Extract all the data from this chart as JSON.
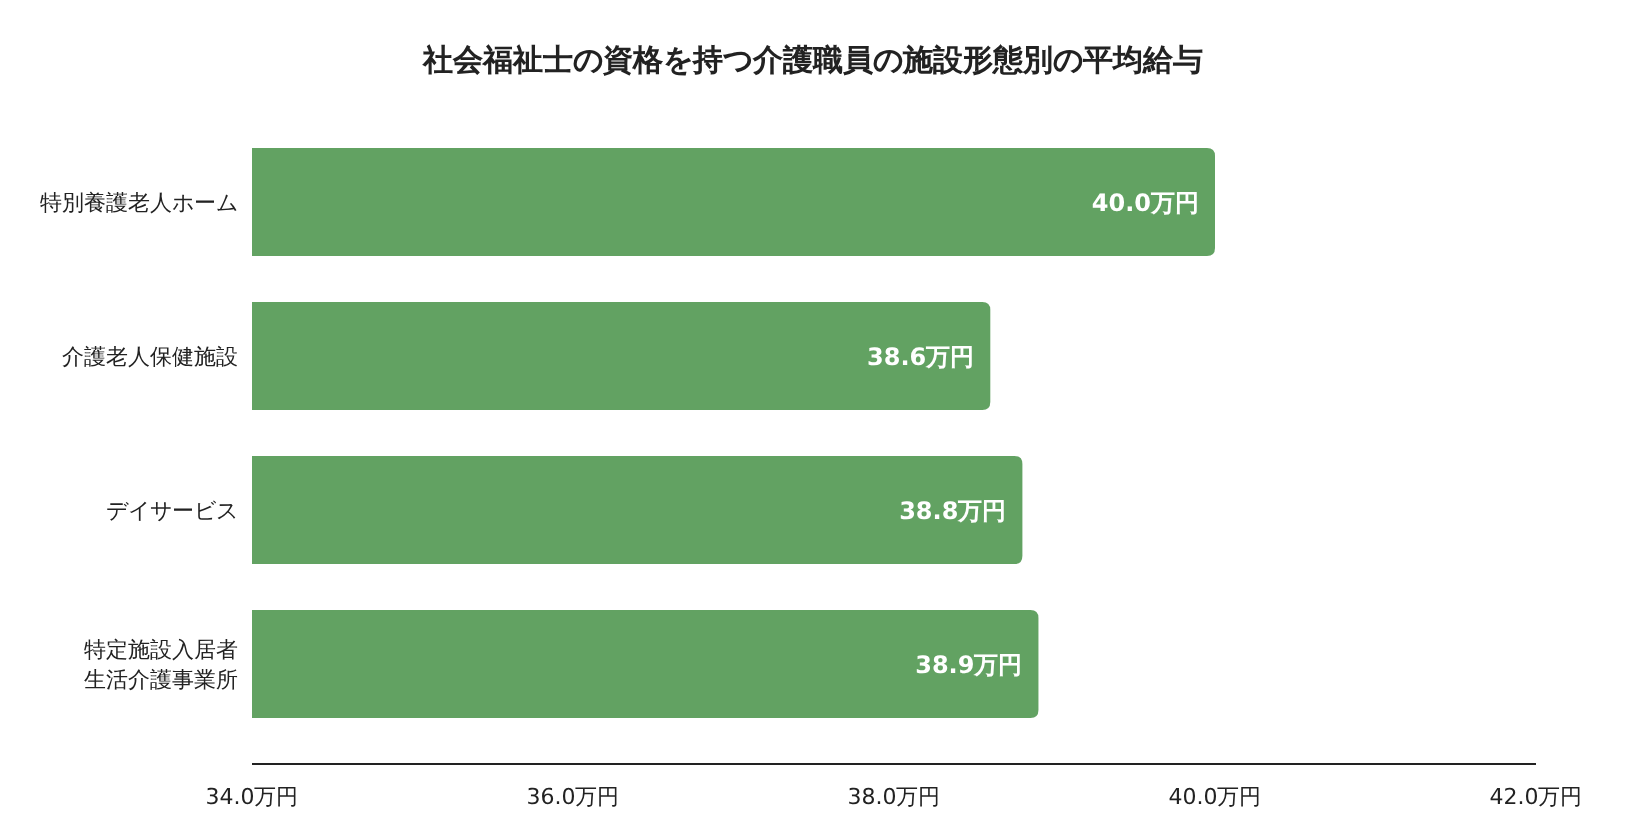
{
  "chart_data": {
    "type": "bar",
    "orientation": "horizontal",
    "title": "社会福祉士の資格を持つ介護職員の施設形態別の平均給与",
    "categories": [
      "特別養護老人ホーム",
      "介護老人保健施設",
      "デイサービス",
      "特定施設入居者生活介護事業所"
    ],
    "values": [
      40.0,
      38.6,
      38.8,
      38.9
    ],
    "value_labels": [
      "40.0万円",
      "38.6万円",
      "38.8万円",
      "38.9万円"
    ],
    "color": "#62a262",
    "xlim": [
      34,
      42
    ],
    "xticks": [
      {
        "value": 34,
        "label": "34.0万円"
      },
      {
        "value": 36,
        "label": "36.0万円"
      },
      {
        "value": 38,
        "label": "38.0万円"
      },
      {
        "value": 40,
        "label": "40.0万円"
      },
      {
        "value": 42,
        "label": "42.0万円"
      }
    ]
  }
}
